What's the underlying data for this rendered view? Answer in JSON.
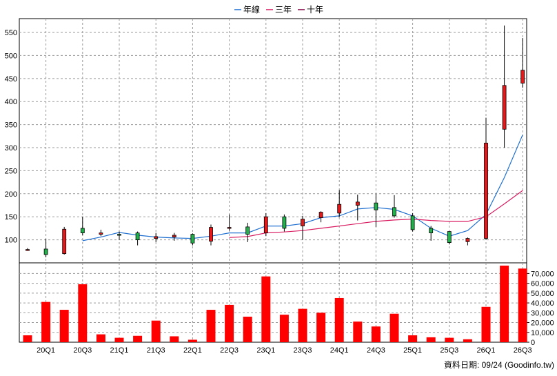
{
  "chart_data": {
    "type": "candlestick",
    "legend": [
      {
        "name": "年線",
        "color": "#1f6fd0"
      },
      {
        "name": "三年",
        "color": "#d81b60"
      },
      {
        "name": "十年",
        "color": "#800040"
      }
    ],
    "up_color": "#e31a1c",
    "down_color": "#22b14c",
    "price_axis": {
      "min": 50,
      "max": 580,
      "ticks": [
        100,
        150,
        200,
        250,
        300,
        350,
        400,
        450,
        500,
        550
      ]
    },
    "volume_axis": {
      "min": 0,
      "max": 78000,
      "ticks": [
        "0",
        "10,000",
        "20,000",
        "30,000",
        "40,000",
        "50,000",
        "60,000",
        "70,000"
      ],
      "tick_values": [
        0,
        10000,
        20000,
        30000,
        40000,
        50000,
        60000,
        70000
      ]
    },
    "x_labels": [
      "20Q1",
      "20Q3",
      "21Q1",
      "21Q3",
      "22Q1",
      "22Q3",
      "23Q1",
      "23Q3",
      "24Q1",
      "24Q3",
      "25Q1",
      "25Q3",
      "26Q1",
      "26Q3"
    ],
    "candles": [
      {
        "o": 79,
        "h": 82,
        "l": 76,
        "c": 79
      },
      {
        "o": 80,
        "h": 102,
        "l": 62,
        "c": 68
      },
      {
        "o": 70,
        "h": 128,
        "l": 68,
        "c": 123
      },
      {
        "o": 125,
        "h": 150,
        "l": 110,
        "c": 115
      },
      {
        "o": 112,
        "h": 122,
        "l": 108,
        "c": 115
      },
      {
        "o": 112,
        "h": 118,
        "l": 100,
        "c": 110
      },
      {
        "o": 115,
        "h": 118,
        "l": 88,
        "c": 100
      },
      {
        "o": 103,
        "h": 115,
        "l": 95,
        "c": 107
      },
      {
        "o": 106,
        "h": 115,
        "l": 98,
        "c": 110
      },
      {
        "o": 112,
        "h": 114,
        "l": 88,
        "c": 93
      },
      {
        "o": 97,
        "h": 133,
        "l": 88,
        "c": 127
      },
      {
        "o": 126,
        "h": 155,
        "l": 120,
        "c": 127
      },
      {
        "o": 128,
        "h": 137,
        "l": 95,
        "c": 112
      },
      {
        "o": 115,
        "h": 158,
        "l": 108,
        "c": 150
      },
      {
        "o": 150,
        "h": 155,
        "l": 118,
        "c": 125
      },
      {
        "o": 130,
        "h": 152,
        "l": 100,
        "c": 145
      },
      {
        "o": 148,
        "h": 162,
        "l": 138,
        "c": 160
      },
      {
        "o": 158,
        "h": 208,
        "l": 150,
        "c": 177
      },
      {
        "o": 175,
        "h": 198,
        "l": 142,
        "c": 182
      },
      {
        "o": 180,
        "h": 200,
        "l": 128,
        "c": 165
      },
      {
        "o": 170,
        "h": 197,
        "l": 148,
        "c": 152
      },
      {
        "o": 152,
        "h": 158,
        "l": 118,
        "c": 122
      },
      {
        "o": 125,
        "h": 130,
        "l": 98,
        "c": 115
      },
      {
        "o": 118,
        "h": 118,
        "l": 90,
        "c": 94
      },
      {
        "o": 96,
        "h": 105,
        "l": 88,
        "c": 103
      },
      {
        "o": 103,
        "h": 365,
        "l": 100,
        "c": 310
      },
      {
        "o": 340,
        "h": 565,
        "l": 300,
        "c": 435
      },
      {
        "o": 440,
        "h": 538,
        "l": 430,
        "c": 468
      }
    ],
    "volume": [
      7000,
      41000,
      33000,
      59000,
      8000,
      4500,
      6500,
      22000,
      6000,
      2500,
      33000,
      38000,
      26000,
      67000,
      28000,
      34000,
      30000,
      45000,
      21000,
      16000,
      29000,
      7000,
      5000,
      4500,
      3000,
      36000,
      78000,
      75000
    ],
    "ma_lines": {
      "年線": [
        null,
        null,
        null,
        98,
        106,
        116,
        110,
        106,
        104,
        103,
        108,
        115,
        115,
        130,
        130,
        135,
        148,
        152,
        167,
        170,
        166,
        152,
        125,
        108,
        120,
        155,
        235,
        328
      ],
      "三年": [
        null,
        null,
        null,
        null,
        null,
        null,
        null,
        null,
        null,
        null,
        null,
        105,
        107,
        115,
        117,
        120,
        125,
        130,
        135,
        140,
        143,
        145,
        142,
        140,
        140,
        150,
        178,
        207
      ],
      "十年": []
    },
    "footer": "資料日期: 09/24  (Goodinfo.tw)"
  }
}
